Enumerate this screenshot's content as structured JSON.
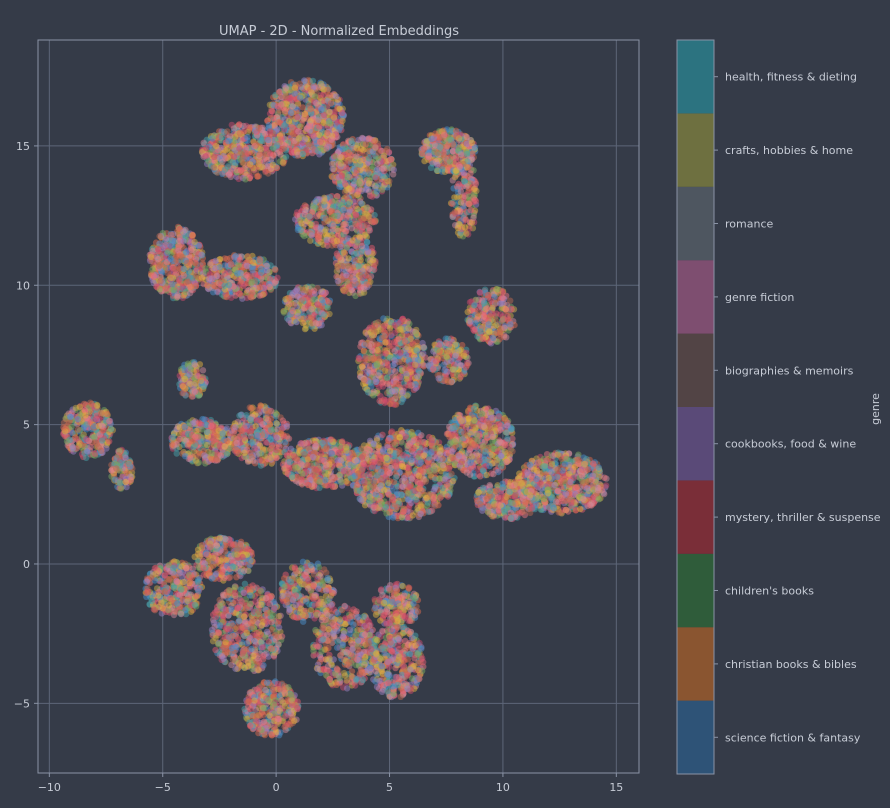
{
  "chart_data": {
    "type": "scatter",
    "title": "UMAP - 2D - Normalized Embeddings",
    "xlim": [
      -10.5,
      16
    ],
    "ylim": [
      -7.5,
      18.8
    ],
    "x_ticks": [
      -10,
      -5,
      0,
      5,
      10,
      15
    ],
    "y_ticks": [
      -5,
      0,
      5,
      10,
      15
    ],
    "x_tick_labels": [
      "−10",
      "−5",
      "0",
      "5",
      "10",
      "15"
    ],
    "y_tick_labels": [
      "−5",
      "0",
      "5",
      "10",
      "15"
    ],
    "grid": true,
    "colorbar": {
      "label": "genre",
      "categories": [
        {
          "name": "science fiction & fantasy",
          "color": "#2e5377"
        },
        {
          "name": "christian books & bibles",
          "color": "#8a5530"
        },
        {
          "name": "children's books",
          "color": "#2f5c3a"
        },
        {
          "name": "mystery, thriller & suspense",
          "color": "#7a2e38"
        },
        {
          "name": "cookbooks, food & wine",
          "color": "#5a4a78"
        },
        {
          "name": "biographies & memoirs",
          "color": "#524445"
        },
        {
          "name": "genre fiction",
          "color": "#7e4e70"
        },
        {
          "name": "romance",
          "color": "#4e5660"
        },
        {
          "name": "crafts, hobbies & home",
          "color": "#6e7040"
        },
        {
          "name": "health, fitness & dieting",
          "color": "#2c7380"
        }
      ]
    },
    "point_colors": [
      "#e05a6c",
      "#e8767e",
      "#c84a6a",
      "#d96a4e",
      "#4aa0a8",
      "#c9a848",
      "#7aa860",
      "#9a82c0",
      "#d08a9a",
      "#e0b040",
      "#4a8ec8",
      "#b86850"
    ],
    "clusters": [
      {
        "cx": 1.3,
        "cy": 16.0,
        "rx": 1.7,
        "ry": 1.4,
        "n": 650
      },
      {
        "cx": -1.4,
        "cy": 14.8,
        "rx": 1.9,
        "ry": 1.0,
        "n": 450
      },
      {
        "cx": 3.8,
        "cy": 14.2,
        "rx": 1.4,
        "ry": 1.1,
        "n": 380
      },
      {
        "cx": 7.6,
        "cy": 14.8,
        "rx": 1.2,
        "ry": 0.8,
        "n": 300
      },
      {
        "cx": 8.3,
        "cy": 13.1,
        "rx": 0.6,
        "ry": 1.4,
        "n": 160
      },
      {
        "cx": 2.6,
        "cy": 12.3,
        "rx": 1.8,
        "ry": 0.9,
        "n": 380
      },
      {
        "cx": 3.5,
        "cy": 10.7,
        "rx": 0.9,
        "ry": 1.1,
        "n": 220
      },
      {
        "cx": -4.4,
        "cy": 10.8,
        "rx": 1.2,
        "ry": 1.3,
        "n": 420
      },
      {
        "cx": -1.6,
        "cy": 10.3,
        "rx": 1.7,
        "ry": 0.8,
        "n": 340
      },
      {
        "cx": 1.4,
        "cy": 9.2,
        "rx": 1.1,
        "ry": 0.8,
        "n": 220
      },
      {
        "cx": 5.1,
        "cy": 7.3,
        "rx": 1.5,
        "ry": 1.6,
        "n": 500
      },
      {
        "cx": 9.5,
        "cy": 8.9,
        "rx": 1.1,
        "ry": 1.0,
        "n": 240
      },
      {
        "cx": 7.6,
        "cy": 7.3,
        "rx": 0.9,
        "ry": 0.8,
        "n": 170
      },
      {
        "cx": -8.3,
        "cy": 4.8,
        "rx": 1.1,
        "ry": 1.0,
        "n": 280
      },
      {
        "cx": -6.8,
        "cy": 3.4,
        "rx": 0.5,
        "ry": 0.7,
        "n": 100
      },
      {
        "cx": -3.7,
        "cy": 6.6,
        "rx": 0.6,
        "ry": 0.7,
        "n": 120
      },
      {
        "cx": -3.3,
        "cy": 4.4,
        "rx": 1.4,
        "ry": 0.8,
        "n": 300
      },
      {
        "cx": -0.7,
        "cy": 4.6,
        "rx": 1.3,
        "ry": 1.1,
        "n": 320
      },
      {
        "cx": 2.1,
        "cy": 3.6,
        "rx": 1.8,
        "ry": 0.9,
        "n": 460
      },
      {
        "cx": 5.6,
        "cy": 3.2,
        "rx": 2.3,
        "ry": 1.6,
        "n": 800
      },
      {
        "cx": 9.0,
        "cy": 4.4,
        "rx": 1.5,
        "ry": 1.3,
        "n": 460
      },
      {
        "cx": 12.6,
        "cy": 2.9,
        "rx": 2.0,
        "ry": 1.1,
        "n": 560
      },
      {
        "cx": 10.2,
        "cy": 2.3,
        "rx": 1.4,
        "ry": 0.7,
        "n": 260
      },
      {
        "cx": -4.5,
        "cy": -0.9,
        "rx": 1.3,
        "ry": 1.0,
        "n": 300
      },
      {
        "cx": -2.3,
        "cy": 0.2,
        "rx": 1.3,
        "ry": 0.8,
        "n": 270
      },
      {
        "cx": -1.3,
        "cy": -2.3,
        "rx": 1.6,
        "ry": 1.6,
        "n": 480
      },
      {
        "cx": -0.2,
        "cy": -5.2,
        "rx": 1.2,
        "ry": 1.0,
        "n": 300
      },
      {
        "cx": 1.4,
        "cy": -1.0,
        "rx": 1.2,
        "ry": 1.1,
        "n": 260
      },
      {
        "cx": 3.0,
        "cy": -3.0,
        "rx": 1.4,
        "ry": 1.5,
        "n": 360
      },
      {
        "cx": 5.3,
        "cy": -3.5,
        "rx": 1.2,
        "ry": 1.3,
        "n": 340
      },
      {
        "cx": 5.3,
        "cy": -1.5,
        "rx": 1.0,
        "ry": 0.8,
        "n": 180
      }
    ]
  }
}
